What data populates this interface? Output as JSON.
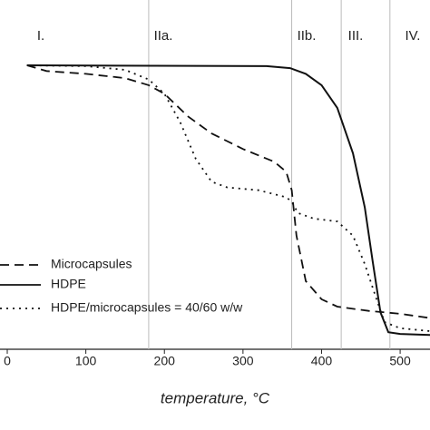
{
  "chart_data": {
    "type": "line",
    "xlabel": "temperature, °C",
    "xlim": [
      0,
      538
    ],
    "ylim": [
      0,
      123
    ],
    "xticks": [
      0,
      100,
      200,
      300,
      400,
      500
    ],
    "vlines": [
      180,
      362,
      425,
      487
    ],
    "region_labels": [
      "I.",
      "IIa.",
      "IIb.",
      "III.",
      "IV."
    ],
    "legend": "left",
    "series": [
      {
        "name": "Microcapsules",
        "color": "#111111",
        "dash": "10,6",
        "x": [
          25,
          50,
          100,
          150,
          180,
          200,
          230,
          260,
          300,
          340,
          355,
          362,
          368,
          380,
          400,
          420,
          460,
          500,
          538
        ],
        "values": [
          100,
          98,
          97,
          95.5,
          93,
          90,
          82,
          76,
          70.5,
          66,
          62.5,
          56,
          40,
          24,
          17.6,
          15,
          13.5,
          12.5,
          11
        ]
      },
      {
        "name": "HDPE",
        "color": "#111111",
        "dash": "none",
        "x": [
          25,
          330,
          360,
          380,
          400,
          420,
          440,
          455,
          465,
          475,
          485,
          500,
          538
        ],
        "values": [
          100,
          99.7,
          99,
          97,
          93,
          85,
          69,
          50,
          31,
          13,
          6,
          5.4,
          5
        ]
      },
      {
        "name": "HDPE/microcapsules = 40/60 w/w",
        "color": "#111111",
        "dash": "2,5",
        "x": [
          25,
          100,
          150,
          180,
          200,
          220,
          240,
          260,
          280,
          320,
          355,
          362,
          370,
          390,
          420,
          440,
          455,
          470,
          480,
          500,
          538
        ],
        "values": [
          100,
          99.7,
          98.4,
          95,
          90,
          80,
          67,
          59,
          57,
          56,
          53.5,
          52,
          48,
          46,
          45,
          40,
          30,
          17.6,
          9.6,
          7.4,
          6.4
        ]
      }
    ]
  }
}
